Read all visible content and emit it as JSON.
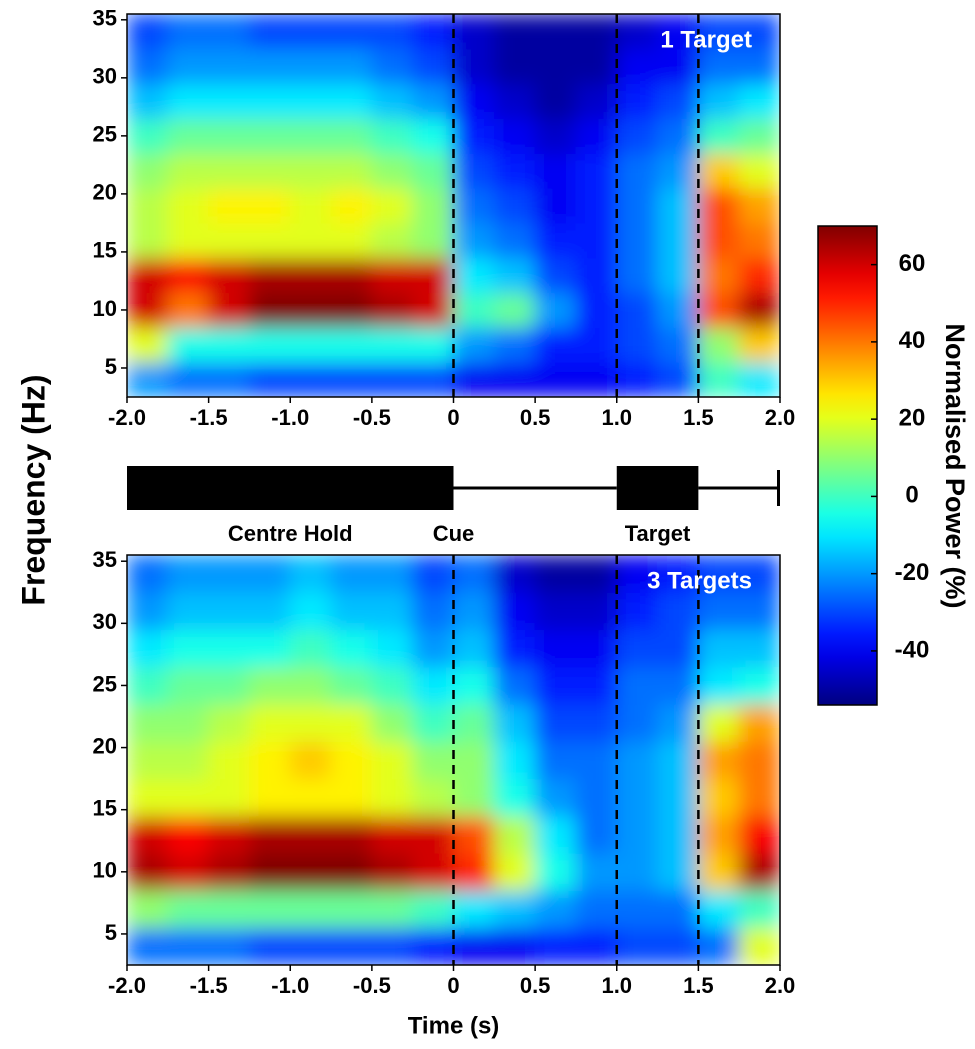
{
  "chart_data": [
    {
      "type": "heatmap",
      "title": "1 Target",
      "x": [
        -1.875,
        -1.625,
        -1.375,
        -1.125,
        -0.875,
        -0.625,
        -0.375,
        -0.125,
        0.125,
        0.375,
        0.625,
        0.875,
        1.125,
        1.375,
        1.625,
        1.875
      ],
      "y": [
        4,
        7,
        10,
        13,
        16,
        19,
        22,
        25,
        28,
        31,
        34
      ],
      "values": [
        [
          -20,
          -25,
          -25,
          -30,
          -30,
          -30,
          -30,
          -30,
          -40,
          -40,
          -40,
          -40,
          -35,
          -30,
          0,
          -10
        ],
        [
          20,
          -5,
          -5,
          -5,
          -5,
          -5,
          -5,
          -5,
          -20,
          -25,
          -35,
          -35,
          -30,
          -25,
          10,
          30
        ],
        [
          60,
          40,
          60,
          70,
          70,
          70,
          65,
          60,
          0,
          5,
          -20,
          -35,
          -30,
          -20,
          45,
          65
        ],
        [
          60,
          55,
          60,
          65,
          65,
          65,
          60,
          60,
          -10,
          -15,
          -30,
          -35,
          -25,
          -15,
          40,
          50
        ],
        [
          15,
          20,
          20,
          20,
          20,
          20,
          15,
          10,
          -20,
          -25,
          -35,
          -35,
          -25,
          -15,
          45,
          40
        ],
        [
          15,
          20,
          25,
          25,
          20,
          25,
          20,
          10,
          -25,
          -30,
          -40,
          -35,
          -25,
          -15,
          45,
          35
        ],
        [
          10,
          15,
          15,
          15,
          15,
          15,
          10,
          5,
          -30,
          -35,
          -40,
          -35,
          -25,
          -20,
          30,
          20
        ],
        [
          0,
          5,
          5,
          5,
          5,
          5,
          0,
          -5,
          -35,
          -40,
          -45,
          -40,
          -30,
          -25,
          0,
          5
        ],
        [
          -15,
          -10,
          -10,
          -10,
          -10,
          -10,
          -15,
          -20,
          -40,
          -45,
          -50,
          -45,
          -35,
          -30,
          -15,
          -10
        ],
        [
          -25,
          -20,
          -20,
          -20,
          -20,
          -20,
          -25,
          -30,
          -45,
          -50,
          -50,
          -50,
          -40,
          -40,
          -25,
          -25
        ],
        [
          -30,
          -25,
          -25,
          -30,
          -30,
          -30,
          -30,
          -35,
          -45,
          -50,
          -50,
          -50,
          -45,
          -40,
          -30,
          -30
        ]
      ],
      "xlim": [
        -2,
        2
      ],
      "xticks": [
        {
          "value": -2,
          "label": "-2.0"
        },
        -1.5,
        {
          "value": -1,
          "label": "-1.0"
        },
        -0.5,
        0,
        0.5,
        {
          "value": 1,
          "label": "1.0"
        },
        1.5,
        {
          "value": 2,
          "label": "2.0"
        }
      ],
      "ylim": [
        2.5,
        35.5
      ],
      "yticks": [
        5,
        10,
        15,
        20,
        25,
        30,
        35
      ],
      "event_lines": [
        0,
        1,
        1.5
      ]
    },
    {
      "type": "heatmap",
      "title": "3 Targets",
      "xlabel": "Time (s)",
      "x": [
        -1.875,
        -1.625,
        -1.375,
        -1.125,
        -0.875,
        -0.625,
        -0.375,
        -0.125,
        0.125,
        0.375,
        0.625,
        0.875,
        1.125,
        1.375,
        1.625,
        1.875
      ],
      "y": [
        4,
        7,
        10,
        13,
        16,
        19,
        22,
        25,
        28,
        31,
        34
      ],
      "values": [
        [
          -25,
          -25,
          -25,
          -30,
          -30,
          -30,
          -30,
          -35,
          -40,
          -40,
          -35,
          -35,
          -30,
          -30,
          -25,
          20
        ],
        [
          10,
          5,
          5,
          5,
          5,
          5,
          5,
          0,
          -10,
          -15,
          -20,
          -25,
          -25,
          -25,
          -10,
          0
        ],
        [
          65,
          60,
          65,
          70,
          70,
          70,
          65,
          60,
          50,
          20,
          -5,
          -20,
          -20,
          -15,
          30,
          65
        ],
        [
          60,
          55,
          60,
          65,
          65,
          65,
          60,
          60,
          45,
          15,
          -10,
          -25,
          -20,
          -15,
          35,
          55
        ],
        [
          20,
          20,
          20,
          25,
          25,
          25,
          20,
          15,
          10,
          -5,
          -20,
          -25,
          -20,
          -15,
          30,
          40
        ],
        [
          15,
          15,
          20,
          25,
          30,
          25,
          20,
          10,
          10,
          -10,
          -25,
          -25,
          -20,
          -15,
          35,
          40
        ],
        [
          10,
          10,
          15,
          20,
          20,
          20,
          10,
          0,
          5,
          -15,
          -30,
          -30,
          -25,
          -20,
          20,
          35
        ],
        [
          0,
          5,
          5,
          10,
          10,
          5,
          0,
          -10,
          -5,
          -25,
          -35,
          -35,
          -25,
          -25,
          -10,
          -5
        ],
        [
          -10,
          -5,
          -5,
          -5,
          0,
          -5,
          -10,
          -20,
          -15,
          -35,
          -40,
          -40,
          -30,
          -30,
          -15,
          -15
        ],
        [
          -20,
          -15,
          -15,
          -15,
          -10,
          -15,
          -15,
          -25,
          -20,
          -40,
          -45,
          -45,
          -35,
          -30,
          -25,
          -25
        ],
        [
          -25,
          -20,
          -20,
          -20,
          -15,
          -20,
          -20,
          -30,
          -25,
          -45,
          -50,
          -50,
          -40,
          -35,
          -30,
          -30
        ]
      ],
      "xlim": [
        -2,
        2
      ],
      "xticks": [
        {
          "value": -2,
          "label": "-2.0"
        },
        -1.5,
        {
          "value": -1,
          "label": "-1.0"
        },
        -0.5,
        0,
        0.5,
        {
          "value": 1,
          "label": "1.0"
        },
        1.5,
        {
          "value": 2,
          "label": "2.0"
        }
      ],
      "ylim": [
        2.5,
        35.5
      ],
      "yticks": [
        5,
        10,
        15,
        20,
        25,
        30,
        35
      ],
      "event_lines": [
        0,
        1,
        1.5
      ]
    }
  ],
  "ylabel": "Frequency (Hz)",
  "colorbar": {
    "label": "Normalised Power (%)",
    "lim": [
      -54,
      70
    ],
    "ticks": [
      -40,
      -20,
      0,
      20,
      40,
      60
    ],
    "colormap": "jet"
  },
  "timeline": {
    "events": [
      {
        "label": "Centre Hold",
        "start": -2,
        "end": 0,
        "filled": true
      },
      {
        "label": "Cue",
        "start": 0,
        "end": 1,
        "filled": false
      },
      {
        "label": "Target",
        "start": 1,
        "end": 1.5,
        "filled": true
      },
      {
        "start": 1.5,
        "end": 2,
        "filled": false
      }
    ]
  }
}
